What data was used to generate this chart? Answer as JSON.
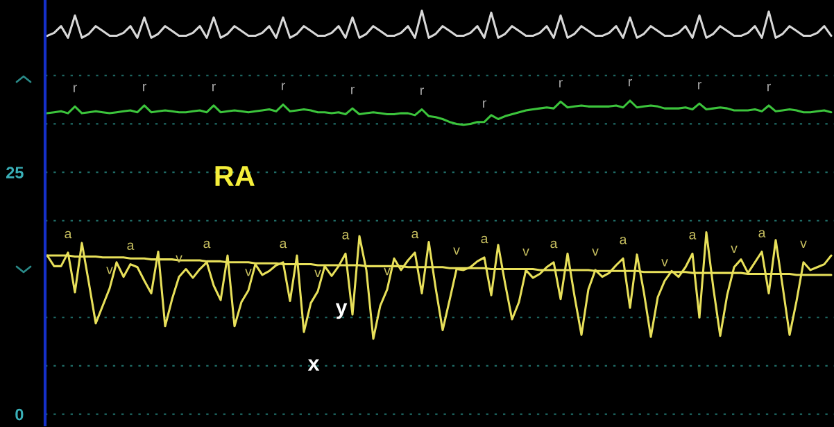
{
  "chart_data": {
    "type": "line",
    "categories": [
      null,
      null,
      null,
      null,
      null,
      null,
      null,
      null,
      null,
      null,
      null,
      null,
      null,
      null,
      null,
      null,
      null,
      null,
      null,
      null,
      null,
      null,
      null,
      null,
      null,
      null,
      null,
      null,
      null,
      null,
      null,
      null,
      null,
      null,
      null,
      null,
      null,
      null,
      null,
      null,
      null,
      null,
      null,
      null,
      null,
      null,
      null,
      null,
      null,
      null,
      null,
      null,
      null,
      null,
      null,
      null,
      null,
      null,
      null,
      null,
      null,
      null,
      null,
      null,
      null,
      null,
      null,
      null,
      null,
      null,
      null,
      null,
      null,
      null,
      null,
      null,
      null,
      null,
      null,
      null,
      null,
      null,
      null,
      null,
      null,
      null,
      null,
      null,
      null,
      null,
      null,
      null,
      null,
      null,
      null,
      null,
      null,
      null,
      null,
      null,
      null,
      null,
      null,
      null,
      null,
      null,
      null,
      null,
      null,
      null,
      null,
      null,
      null,
      null
    ],
    "ylim": [
      -1.1,
      42.8
    ],
    "yticks": [
      0,
      {
        "value": 5,
        "label": null
      },
      {
        "value": 10,
        "label": null
      },
      {
        "value": 20,
        "label": null
      },
      25,
      {
        "value": 30,
        "label": null
      },
      {
        "value": 35,
        "label": null
      }
    ],
    "tick_labels": "y",
    "grid": "y",
    "series": [
      {
        "color": "#d8d8d8",
        "values": [
          39.1,
          39.4,
          40.1,
          38.9,
          41.2,
          38.9,
          39.3,
          40.1,
          39.6,
          39.1,
          39.1,
          39.4,
          40.1,
          38.9,
          41.0,
          38.9,
          39.3,
          40.1,
          39.6,
          39.1,
          39.1,
          39.4,
          40.1,
          38.9,
          41.0,
          38.9,
          39.3,
          40.1,
          39.6,
          39.1,
          39.1,
          39.4,
          40.1,
          38.9,
          41.0,
          38.9,
          39.3,
          40.1,
          39.6,
          39.1,
          39.1,
          39.4,
          40.1,
          38.9,
          41.0,
          38.9,
          39.3,
          40.1,
          39.6,
          39.1,
          39.1,
          39.4,
          40.1,
          38.9,
          41.7,
          38.9,
          39.3,
          40.1,
          39.6,
          39.1,
          39.1,
          39.4,
          40.1,
          38.9,
          41.5,
          38.9,
          39.3,
          40.1,
          39.6,
          39.1,
          39.1,
          39.4,
          40.1,
          38.9,
          41.2,
          38.9,
          39.3,
          40.1,
          39.6,
          39.1,
          39.1,
          39.4,
          40.1,
          38.9,
          41.0,
          38.9,
          39.3,
          40.1,
          39.6,
          39.1,
          39.1,
          39.4,
          40.1,
          38.9,
          41.2,
          38.9,
          39.3,
          40.1,
          39.6,
          39.1,
          39.1,
          39.4,
          40.1,
          38.9,
          41.6,
          38.9,
          39.3,
          40.1,
          39.6,
          39.1,
          39.1,
          39.4,
          40.1,
          39.1
        ]
      },
      {
        "color": "#3cc43c",
        "values": [
          31.1,
          31.2,
          31.3,
          31.1,
          31.8,
          31.1,
          31.2,
          31.3,
          31.2,
          31.1,
          31.2,
          31.3,
          31.4,
          31.2,
          31.9,
          31.2,
          31.3,
          31.4,
          31.3,
          31.2,
          31.2,
          31.3,
          31.4,
          31.2,
          31.9,
          31.2,
          31.3,
          31.4,
          31.3,
          31.2,
          31.3,
          31.4,
          31.5,
          31.3,
          32.0,
          31.3,
          31.4,
          31.5,
          31.4,
          31.2,
          31.2,
          31.1,
          31.2,
          31.0,
          31.6,
          31.0,
          31.1,
          31.2,
          31.1,
          31.0,
          31.0,
          31.1,
          31.1,
          30.9,
          31.5,
          30.8,
          30.7,
          30.5,
          30.2,
          30.0,
          29.9,
          30.0,
          30.2,
          30.2,
          30.9,
          30.5,
          30.8,
          31.0,
          31.2,
          31.4,
          31.5,
          31.6,
          31.7,
          31.6,
          32.3,
          31.7,
          31.8,
          31.9,
          31.8,
          31.8,
          31.8,
          31.8,
          31.9,
          31.7,
          32.4,
          31.7,
          31.8,
          31.9,
          31.8,
          31.6,
          31.6,
          31.6,
          31.7,
          31.5,
          32.1,
          31.5,
          31.6,
          31.7,
          31.6,
          31.4,
          31.4,
          31.4,
          31.5,
          31.3,
          31.9,
          31.3,
          31.4,
          31.5,
          31.4,
          31.2,
          31.2,
          31.3,
          31.4,
          31.2
        ],
        "value_labels": [
          null,
          null,
          null,
          null,
          "r",
          null,
          null,
          null,
          null,
          null,
          null,
          null,
          null,
          null,
          "r",
          null,
          null,
          null,
          null,
          null,
          null,
          null,
          null,
          null,
          "r",
          null,
          null,
          null,
          null,
          null,
          null,
          null,
          null,
          null,
          "r",
          null,
          null,
          null,
          null,
          null,
          null,
          null,
          null,
          null,
          "r",
          null,
          null,
          null,
          null,
          null,
          null,
          null,
          null,
          null,
          "r",
          null,
          null,
          null,
          null,
          null,
          null,
          null,
          null,
          "r",
          null,
          null,
          null,
          null,
          null,
          null,
          null,
          null,
          null,
          null,
          "r",
          null,
          null,
          null,
          null,
          null,
          null,
          null,
          null,
          null,
          "r",
          null,
          null,
          null,
          null,
          null,
          null,
          null,
          null,
          null,
          "r",
          null,
          null,
          null,
          null,
          null,
          null,
          null,
          null,
          null,
          "r",
          null,
          null,
          null,
          null,
          null,
          null,
          null,
          null,
          null
        ]
      },
      {
        "color": "#e8e05a",
        "values": [
          16.4,
          15.3,
          15.3,
          16.7,
          12.6,
          17.7,
          13.6,
          9.4,
          11.2,
          13.0,
          15.7,
          14.2,
          15.5,
          15.2,
          13.8,
          12.5,
          16.8,
          9.1,
          11.9,
          14.2,
          15.0,
          14.1,
          15.0,
          15.7,
          13.3,
          11.8,
          16.4,
          9.1,
          11.6,
          12.8,
          15.5,
          14.4,
          14.8,
          15.4,
          15.7,
          11.7,
          16.4,
          8.5,
          11.5,
          12.7,
          15.3,
          14.3,
          15.3,
          16.6,
          10.3,
          18.4,
          14.9,
          7.8,
          11.2,
          12.9,
          16.1,
          14.9,
          15.9,
          16.7,
          12.5,
          17.8,
          13.0,
          8.7,
          11.8,
          15.0,
          14.9,
          15.2,
          15.8,
          16.2,
          12.3,
          17.5,
          13.5,
          9.8,
          11.6,
          14.9,
          14.1,
          14.5,
          15.2,
          15.7,
          11.9,
          16.6,
          12.2,
          8.2,
          12.9,
          14.9,
          14.2,
          14.6,
          15.4,
          16.1,
          11.0,
          16.5,
          12.6,
          8.0,
          12.1,
          13.8,
          14.8,
          14.2,
          15.2,
          16.6,
          10.0,
          18.8,
          13.1,
          8.1,
          12.3,
          15.2,
          16.0,
          14.6,
          15.7,
          16.8,
          12.5,
          18.0,
          13.2,
          8.2,
          11.7,
          15.7,
          14.9,
          15.2,
          15.5,
          16.4
        ],
        "value_labels": [
          null,
          null,
          null,
          "a",
          null,
          null,
          null,
          null,
          null,
          "v",
          null,
          null,
          "a",
          null,
          null,
          null,
          null,
          null,
          null,
          "v",
          null,
          null,
          null,
          "a",
          null,
          null,
          null,
          null,
          null,
          "v",
          null,
          null,
          null,
          null,
          "a",
          null,
          null,
          "x",
          null,
          "v",
          null,
          "y",
          null,
          "a",
          null,
          null,
          null,
          null,
          null,
          "v",
          null,
          null,
          null,
          "a",
          null,
          null,
          null,
          null,
          null,
          "v",
          null,
          null,
          null,
          "a",
          null,
          null,
          null,
          null,
          null,
          "v",
          null,
          null,
          null,
          "a",
          null,
          null,
          null,
          null,
          null,
          "v",
          null,
          null,
          null,
          "a",
          null,
          null,
          null,
          null,
          null,
          "v",
          null,
          null,
          null,
          "a",
          null,
          null,
          null,
          null,
          null,
          "v",
          null,
          null,
          null,
          "a",
          null,
          null,
          null,
          null,
          null,
          "v",
          null,
          null,
          null,
          null
        ]
      },
      {
        "color": "#e8e05a",
        "values": [
          16.4,
          16.4,
          16.4,
          16.4,
          16.3,
          16.3,
          16.3,
          16.3,
          16.2,
          16.2,
          16.2,
          16.2,
          16.1,
          16.1,
          16.1,
          16.0,
          16.0,
          16.0,
          16.0,
          15.9,
          15.9,
          15.9,
          15.9,
          15.8,
          15.8,
          15.8,
          15.7,
          15.7,
          15.7,
          15.7,
          15.6,
          15.6,
          15.6,
          15.6,
          15.5,
          15.5,
          15.5,
          15.5,
          15.5,
          15.4,
          15.4,
          15.4,
          15.4,
          15.4,
          15.4,
          15.4,
          15.3,
          15.3,
          15.3,
          15.3,
          15.3,
          15.3,
          15.2,
          15.2,
          15.2,
          15.2,
          15.2,
          15.2,
          15.1,
          15.1,
          15.1,
          15.1,
          15.1,
          15.1,
          15.0,
          15.0,
          15.0,
          15.0,
          15.0,
          15.0,
          15.0,
          14.9,
          14.9,
          14.9,
          14.9,
          14.9,
          14.9,
          14.9,
          14.9,
          14.8,
          14.8,
          14.8,
          14.8,
          14.8,
          14.8,
          14.8,
          14.7,
          14.7,
          14.7,
          14.7,
          14.7,
          14.7,
          14.7,
          14.6,
          14.6,
          14.6,
          14.6,
          14.6,
          14.6,
          14.6,
          14.6,
          14.5,
          14.5,
          14.5,
          14.5,
          14.5,
          14.5,
          14.5,
          14.4,
          14.4,
          14.4,
          14.4,
          14.4,
          14.4
        ]
      }
    ],
    "annotations": [
      "RA"
    ]
  }
}
